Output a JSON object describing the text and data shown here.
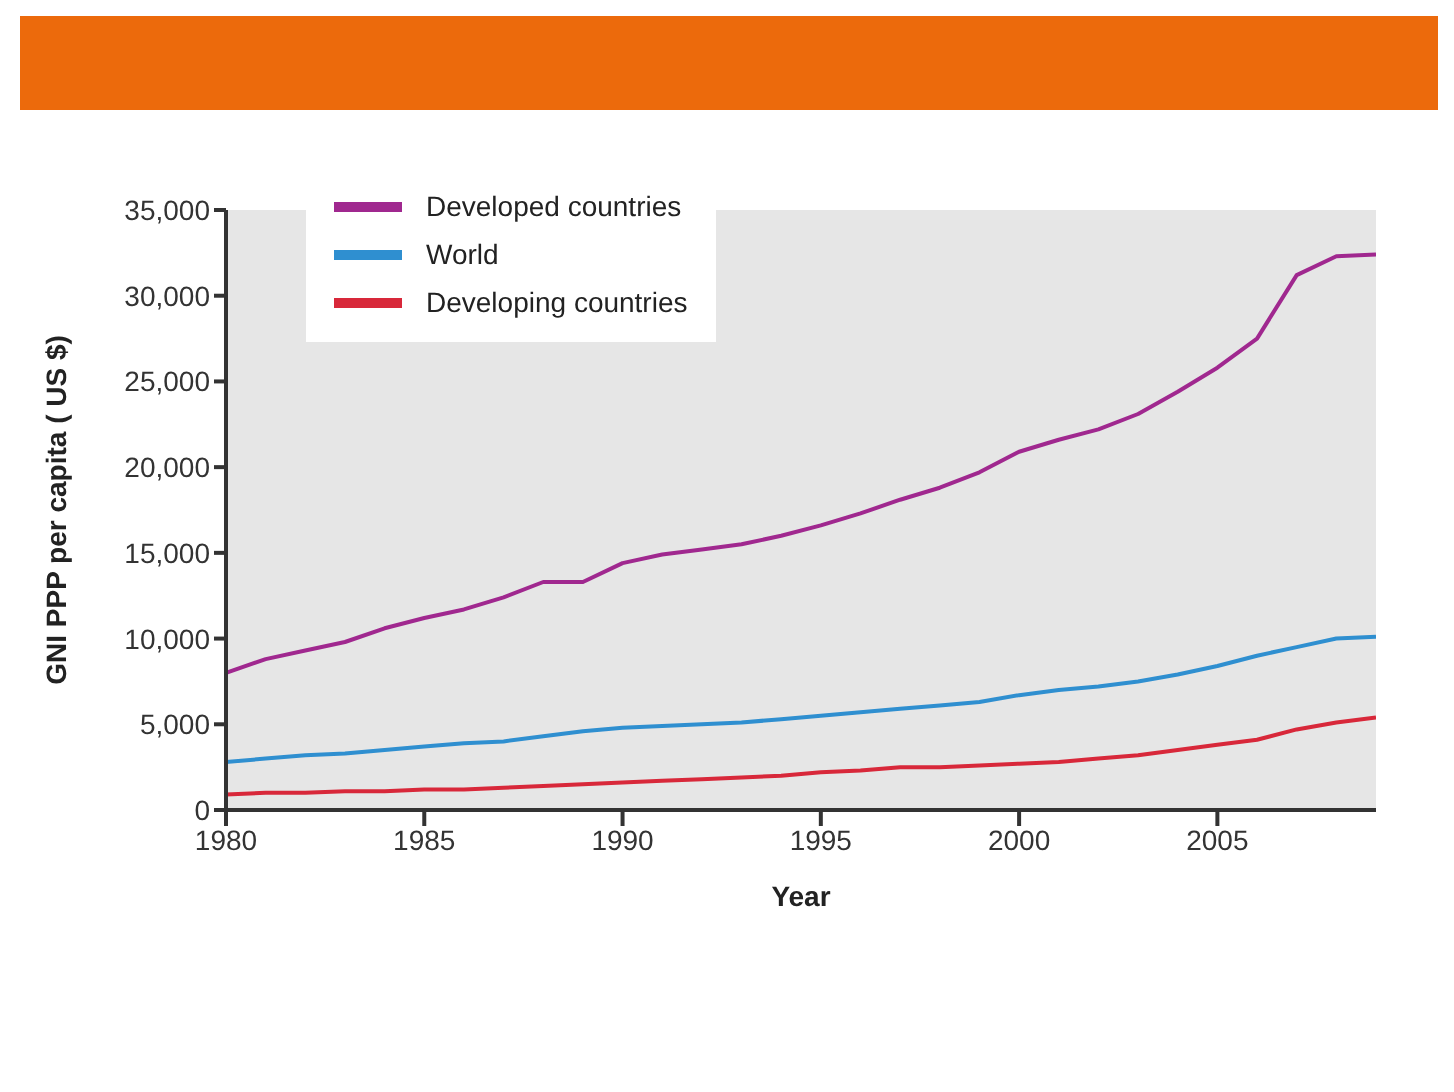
{
  "chart_data": {
    "type": "line",
    "xlabel": "Year",
    "ylabel": "GNI PPP per capita ( US $)",
    "x": [
      1980,
      1981,
      1982,
      1983,
      1984,
      1985,
      1986,
      1987,
      1988,
      1989,
      1990,
      1991,
      1992,
      1993,
      1994,
      1995,
      1996,
      1997,
      1998,
      1999,
      2000,
      2001,
      2002,
      2003,
      2004,
      2005,
      2006,
      2007,
      2008,
      2009
    ],
    "series": [
      {
        "name": "Developed countries",
        "color": "#a0288f",
        "values": [
          8000,
          8800,
          9300,
          9800,
          10600,
          11200,
          11700,
          12400,
          13300,
          13300,
          14400,
          14900,
          15200,
          15500,
          16000,
          16600,
          17300,
          18100,
          18800,
          19700,
          20900,
          21600,
          22200,
          23100,
          24400,
          25800,
          27500,
          31200,
          32300,
          32400
        ]
      },
      {
        "name": "World",
        "color": "#2f8fd0",
        "values": [
          2800,
          3000,
          3200,
          3300,
          3500,
          3700,
          3900,
          4000,
          4300,
          4600,
          4800,
          4900,
          5000,
          5100,
          5300,
          5500,
          5700,
          5900,
          6100,
          6300,
          6700,
          7000,
          7200,
          7500,
          7900,
          8400,
          9000,
          9500,
          10000,
          10100
        ]
      },
      {
        "name": "Developing countries",
        "color": "#d8283a",
        "values": [
          900,
          1000,
          1000,
          1100,
          1100,
          1200,
          1200,
          1300,
          1400,
          1500,
          1600,
          1700,
          1800,
          1900,
          2000,
          2200,
          2300,
          2500,
          2500,
          2600,
          2700,
          2800,
          3000,
          3200,
          3500,
          3800,
          4100,
          4700,
          5100,
          5400
        ]
      }
    ],
    "xlim": [
      1980,
      2009
    ],
    "xticks": [
      1980,
      1985,
      1990,
      1995,
      2000,
      2005
    ],
    "ylim": [
      0,
      35000
    ],
    "yticks": [
      {
        "value": 0,
        "label": "0"
      },
      {
        "value": 5000,
        "label": "5,000"
      },
      {
        "value": 10000,
        "label": "10,000"
      },
      {
        "value": 15000,
        "label": "15,000"
      },
      {
        "value": 20000,
        "label": "20,000"
      },
      {
        "value": 25000,
        "label": "25,000"
      },
      {
        "value": 30000,
        "label": "30,000"
      },
      {
        "value": 35000,
        "label": "35,000"
      }
    ],
    "grid": false,
    "legend": "top left",
    "marker": "none",
    "line_style": "solid"
  }
}
